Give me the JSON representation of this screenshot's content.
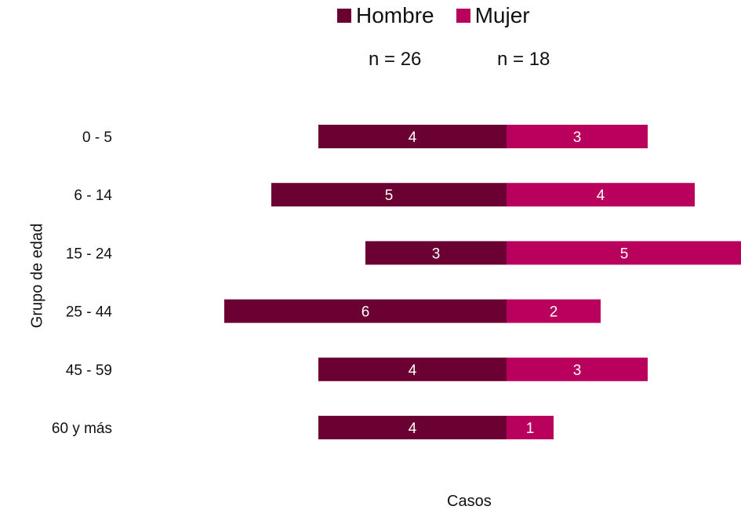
{
  "chart_data": {
    "type": "bar",
    "orientation": "horizontal-diverging",
    "categories": [
      "0 - 5",
      "6 - 14",
      "15 - 24",
      "25 - 44",
      "45 - 59",
      "60 y más"
    ],
    "series": [
      {
        "name": "Hombre",
        "values": [
          4,
          5,
          3,
          6,
          4,
          4
        ],
        "color": "#6b0033",
        "direction": "left"
      },
      {
        "name": "Mujer",
        "values": [
          3,
          4,
          5,
          2,
          3,
          1
        ],
        "color": "#b8005c",
        "direction": "right"
      }
    ],
    "n_labels": [
      "n = 26",
      "n = 18"
    ],
    "xlabel": "Casos",
    "ylabel": "Grupo de edad",
    "legend_position": "top",
    "grid": false,
    "data_labels": true
  }
}
